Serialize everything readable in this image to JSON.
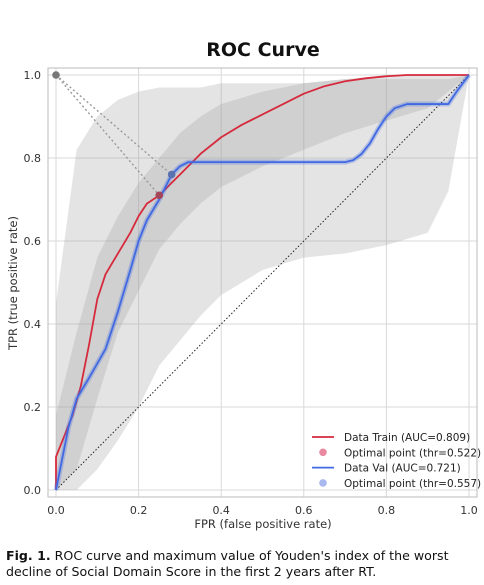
{
  "chart_data": {
    "type": "line",
    "title": "ROC Curve",
    "xlabel": "FPR (false positive rate)",
    "ylabel": "TPR (true positive rate)",
    "xlim": [
      0,
      1
    ],
    "ylim": [
      0,
      1
    ],
    "xticks": [
      "0.0",
      "0.2",
      "0.4",
      "0.6",
      "0.8",
      "1.0"
    ],
    "yticks": [
      "0.0",
      "0.2",
      "0.4",
      "0.6",
      "0.8",
      "1.0"
    ],
    "grid": true,
    "legend_position": "lower-right",
    "series": [
      {
        "name": "Data Train (AUC=0.809)",
        "color": "#d62a3c",
        "x": [
          0,
          0,
          0.02,
          0.04,
          0.06,
          0.08,
          0.1,
          0.12,
          0.15,
          0.18,
          0.2,
          0.22,
          0.25,
          0.28,
          0.3,
          0.35,
          0.4,
          0.45,
          0.5,
          0.55,
          0.6,
          0.65,
          0.7,
          0.75,
          0.8,
          0.85,
          0.9,
          0.95,
          1
        ],
        "y": [
          0,
          0.08,
          0.13,
          0.18,
          0.25,
          0.35,
          0.46,
          0.52,
          0.57,
          0.62,
          0.66,
          0.69,
          0.71,
          0.74,
          0.76,
          0.81,
          0.85,
          0.88,
          0.905,
          0.93,
          0.955,
          0.973,
          0.985,
          0.992,
          0.997,
          1,
          1,
          1,
          1
        ]
      },
      {
        "name": "Data Val (AUC=0.721)",
        "color": "#4169e1",
        "x": [
          0,
          0.01,
          0.03,
          0.05,
          0.08,
          0.12,
          0.15,
          0.18,
          0.2,
          0.22,
          0.25,
          0.28,
          0.3,
          0.32,
          0.35,
          0.4,
          0.5,
          0.6,
          0.7,
          0.72,
          0.74,
          0.76,
          0.78,
          0.8,
          0.82,
          0.85,
          0.88,
          0.9,
          0.95,
          0.97,
          1
        ],
        "y": [
          0,
          0.05,
          0.15,
          0.22,
          0.27,
          0.34,
          0.43,
          0.53,
          0.6,
          0.65,
          0.7,
          0.76,
          0.78,
          0.79,
          0.79,
          0.79,
          0.79,
          0.79,
          0.79,
          0.795,
          0.81,
          0.835,
          0.87,
          0.9,
          0.92,
          0.93,
          0.93,
          0.93,
          0.93,
          0.96,
          1
        ]
      }
    ],
    "bands": [
      {
        "series": "Data Train (AUC=0.809)",
        "x": [
          0,
          0.05,
          0.1,
          0.15,
          0.2,
          0.25,
          0.3,
          0.35,
          0.4,
          0.5,
          0.6,
          0.7,
          0.8,
          0.9,
          1
        ],
        "lower": [
          0,
          0.05,
          0.22,
          0.38,
          0.48,
          0.58,
          0.64,
          0.69,
          0.73,
          0.78,
          0.82,
          0.86,
          0.89,
          0.92,
          1
        ],
        "upper": [
          0.18,
          0.38,
          0.56,
          0.66,
          0.74,
          0.8,
          0.86,
          0.9,
          0.93,
          0.96,
          0.98,
          0.99,
          1,
          1,
          1
        ]
      },
      {
        "series": "Data Val (AUC=0.721)",
        "x": [
          0,
          0.05,
          0.1,
          0.15,
          0.2,
          0.25,
          0.3,
          0.35,
          0.4,
          0.5,
          0.6,
          0.7,
          0.8,
          0.9,
          0.95,
          1
        ],
        "lower": [
          0,
          0,
          0.05,
          0.12,
          0.2,
          0.3,
          0.36,
          0.42,
          0.47,
          0.53,
          0.56,
          0.57,
          0.59,
          0.62,
          0.72,
          1
        ],
        "upper": [
          0.45,
          0.82,
          0.9,
          0.94,
          0.96,
          0.97,
          0.97,
          0.97,
          0.98,
          0.98,
          0.98,
          0.99,
          0.99,
          0.99,
          0.99,
          1
        ]
      }
    ],
    "optimal_points": [
      {
        "name": "Optimal point (thr=0.522)",
        "x": 0.25,
        "y": 0.71,
        "color": "#e98aa2"
      },
      {
        "name": "Optimal point (thr=0.557)",
        "x": 0.28,
        "y": 0.76,
        "color": "#a9b8ee"
      }
    ],
    "ideal_point": {
      "x": 0,
      "y": 1
    },
    "diagonal": true
  },
  "caption": {
    "label": "Fig. 1.",
    "text": " ROC curve and maximum value of Youden's index of the worst decline of Social Domain Score in the first 2 years after RT."
  }
}
